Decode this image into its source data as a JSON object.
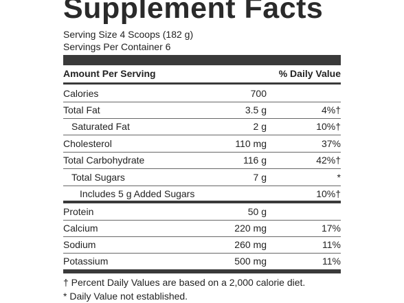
{
  "header": {
    "title": "Supplement Facts",
    "serving_size": "Serving Size 4 Scoops (182 g)",
    "servings_per_container": "Servings Per Container 6"
  },
  "table": {
    "columns": [
      "Amount Per Serving",
      "% Daily Value"
    ],
    "rows": [
      {
        "name": "Calories",
        "amount": "700"
      },
      {
        "name": "Total Fat",
        "amount": "3.5 g",
        "dv": "4%†"
      },
      {
        "name": "Saturated Fat",
        "amount": "2 g",
        "dv": "10%†"
      },
      {
        "name": "Cholesterol",
        "amount": "110 mg",
        "dv": "37%"
      },
      {
        "name": "Total Carbohydrate",
        "amount": "116 g",
        "dv": "42%†"
      },
      {
        "name": "Total Sugars",
        "amount": "7 g",
        "dv": "*"
      },
      {
        "name": "Includes 5 g Added Sugars",
        "dv": "10%†"
      },
      {
        "name": "Protein",
        "amount": "50 g"
      },
      {
        "name": "Calcium",
        "amount": "220 mg",
        "dv": "17%"
      },
      {
        "name": "Sodium",
        "amount": "260 mg",
        "dv": "11%"
      },
      {
        "name": "Potassium",
        "amount": "500 mg",
        "dv": "11%"
      }
    ]
  },
  "footnotes": [
    "† Percent Daily Values are based on a 2,000 calorie diet.",
    "* Daily Value not established."
  ]
}
